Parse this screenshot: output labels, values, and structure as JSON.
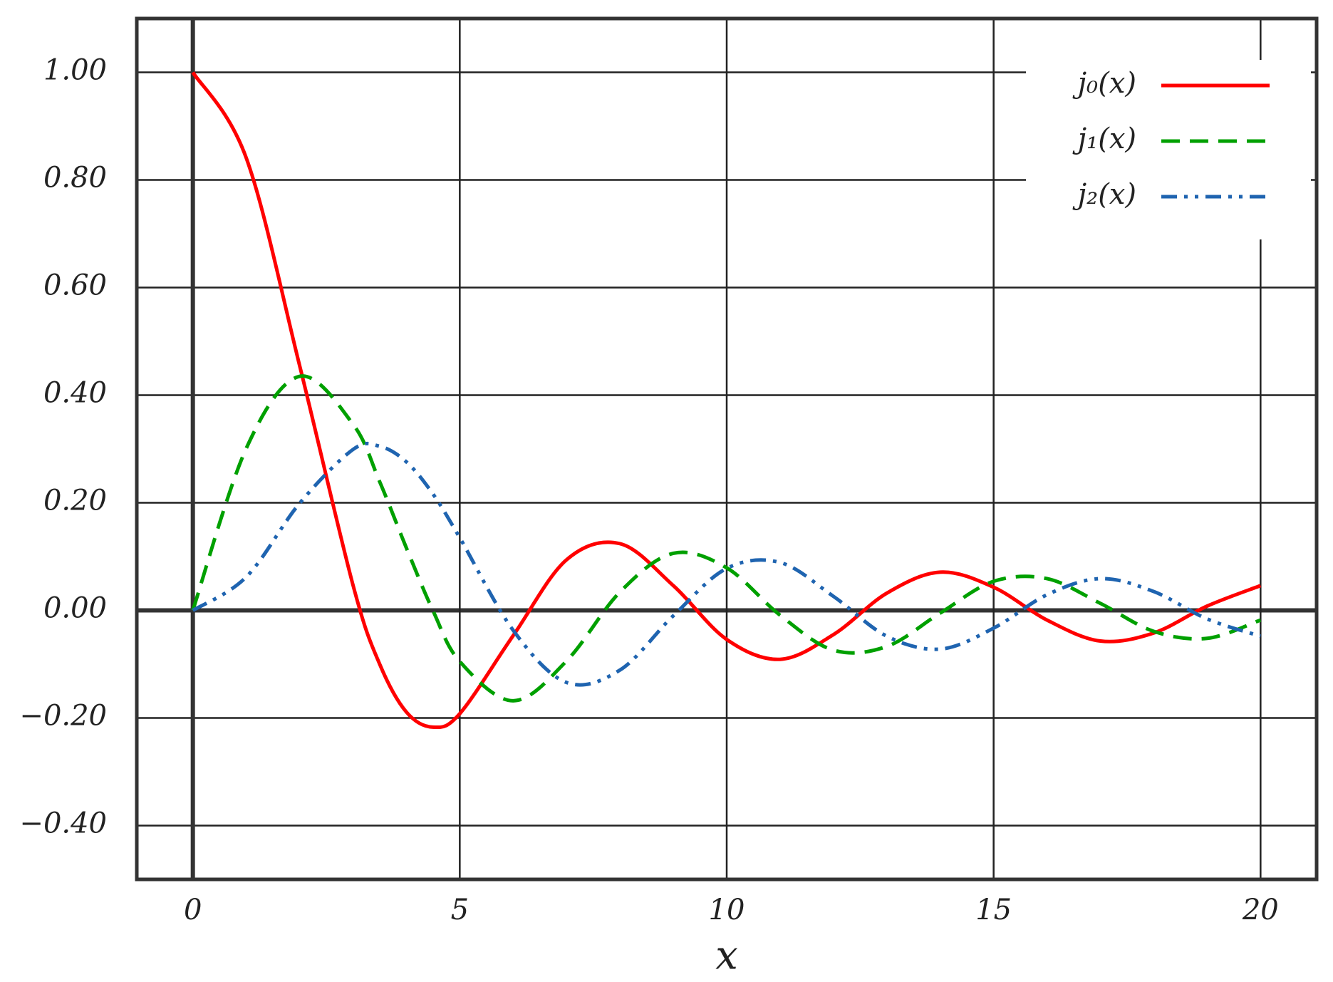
{
  "chart_data": {
    "type": "line",
    "x_label": "x",
    "x": [
      0,
      1,
      2,
      3,
      3.5,
      4,
      4.5,
      5,
      6,
      7,
      8,
      9,
      10,
      11,
      12,
      13,
      14,
      15,
      16,
      17,
      18,
      19,
      20
    ],
    "series": [
      {
        "name": "j₀(x)",
        "color": "#ff0000",
        "dash": "solid",
        "values": [
          1,
          0.841,
          0.455,
          0.047,
          -0.1,
          -0.189,
          -0.217,
          -0.192,
          -0.047,
          0.094,
          0.124,
          0.046,
          -0.054,
          -0.091,
          -0.045,
          0.032,
          0.071,
          0.043,
          -0.018,
          -0.057,
          -0.042,
          0.008,
          0.046
        ]
      },
      {
        "name": "j₁(x)",
        "color": "#00a000",
        "dash": "dashed",
        "values": [
          0,
          0.301,
          0.435,
          0.346,
          0.239,
          0.116,
          -0.001,
          -0.095,
          -0.168,
          -0.094,
          0.034,
          0.106,
          0.079,
          -0.009,
          -0.074,
          -0.067,
          -0.005,
          0.054,
          0.059,
          0.013,
          -0.039,
          -0.052,
          -0.018
        ]
      },
      {
        "name": "j₂(x)",
        "color": "#1f64b0",
        "dash": "dashdotdot",
        "values": [
          0,
          0.062,
          0.199,
          0.299,
          0.305,
          0.276,
          0.216,
          0.135,
          -0.037,
          -0.134,
          -0.111,
          -0.01,
          0.078,
          0.089,
          0.026,
          -0.048,
          -0.072,
          -0.033,
          0.029,
          0.059,
          0.035,
          -0.016,
          -0.048
        ]
      }
    ],
    "xlim": [
      -1.05,
      21.05
    ],
    "ylim": [
      -0.5,
      1.1
    ],
    "xticks": [
      0,
      5,
      10,
      15,
      20
    ],
    "yticks": [
      {
        "value": -0.4,
        "label": "−0.40"
      },
      {
        "value": -0.2,
        "label": "−0.20"
      },
      {
        "value": 0,
        "label": "0.00"
      },
      {
        "value": 0.2,
        "label": "0.20"
      },
      {
        "value": 0.4,
        "label": "0.40"
      },
      {
        "value": 0.6,
        "label": "0.60"
      },
      {
        "value": 0.8,
        "label": "0.80"
      },
      {
        "value": 1,
        "label": "1.00"
      }
    ],
    "grid": true,
    "legend": "top-right"
  }
}
